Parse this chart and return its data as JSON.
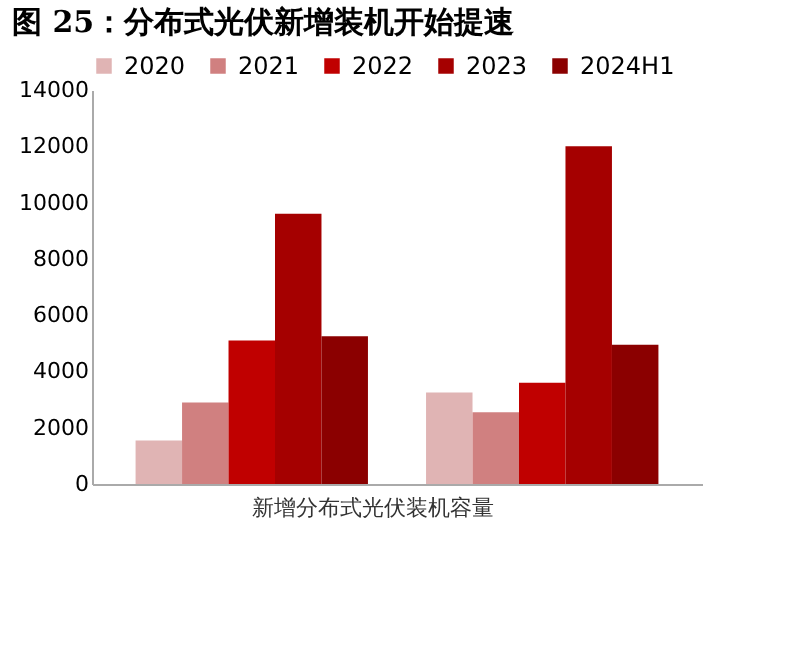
{
  "chart_data": {
    "type": "bar",
    "title": "图 25：分布式光伏新增装机开始提速",
    "categories": [
      "新增分布式光伏装机容量",
      null
    ],
    "series": [
      {
        "name": "2020",
        "color": "#e0b4b4",
        "values": [
          1550,
          3250
        ]
      },
      {
        "name": "2021",
        "color": "#d08080",
        "values": [
          2900,
          2550
        ]
      },
      {
        "name": "2022",
        "color": "#c00000",
        "values": [
          5100,
          3600
        ]
      },
      {
        "name": "2023",
        "color": "#a50000",
        "values": [
          9600,
          12000
        ]
      },
      {
        "name": "2024H1",
        "color": "#8b0000",
        "values": [
          5250,
          4950
        ]
      }
    ],
    "ylim": [
      0,
      14000
    ],
    "yticks": [
      0,
      2000,
      4000,
      6000,
      8000,
      10000,
      12000,
      14000
    ],
    "grid": false,
    "legend": "top"
  }
}
